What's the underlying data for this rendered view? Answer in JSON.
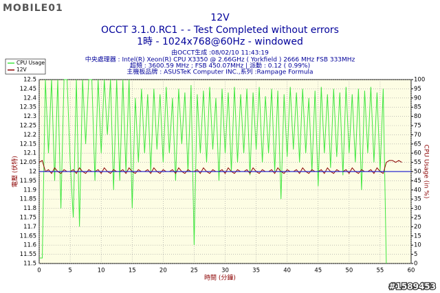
{
  "watermark": "MOBILE01",
  "id_tag": "#1589453",
  "chart_data": {
    "type": "line",
    "title": "12V",
    "subtitle_lines": [
      "OCCT 3.1.0.RC1 -  - Test Completed without errors",
      "1時 - 1024x768@60Hz - windowed"
    ],
    "info_lines": [
      "由OCCT生成 :08/02/10 11:43:19",
      "中央處理器 : Intel(R) Xeon(R) CPU X3350 @ 2.66GHz ( Yorkfield ) 2666 MHz FSB 333MHz",
      "超頻 : 3600.59 MHz ; FSB 450.07MHz | 派動 : 0.12 ( 0.99%)",
      "主機板品牌 : ASUSTeK Computer INC.,系列 :Rampage Formula"
    ],
    "x_label": "時間 (分鐘)",
    "y_label": "電壓 (伏特)",
    "y2_label": "CPU Usage (in %)",
    "xlim": [
      0,
      60
    ],
    "xticks": [
      0,
      5,
      10,
      15,
      20,
      25,
      30,
      35,
      40,
      45,
      50,
      55,
      60
    ],
    "ylim": [
      11.5,
      12.5
    ],
    "yticks": [
      11.5,
      11.55,
      11.6,
      11.65,
      11.7,
      11.75,
      11.8,
      11.85,
      11.9,
      11.95,
      12,
      12.05,
      12.1,
      12.15,
      12.2,
      12.25,
      12.3,
      12.35,
      12.4,
      12.45,
      12.5
    ],
    "y2lim": [
      0,
      100
    ],
    "y2ticks": [
      0,
      5,
      10,
      15,
      20,
      25,
      30,
      35,
      40,
      45,
      50,
      55,
      60,
      65,
      70,
      75,
      80,
      85,
      90,
      95,
      100
    ],
    "grid": true,
    "legend": "top-left",
    "reference_value": 12,
    "reference_color": "#2a2ad0",
    "x": [
      0,
      0.5,
      1,
      1.5,
      2,
      2.5,
      3,
      3.5,
      4,
      4.5,
      5,
      5.5,
      6,
      6.5,
      7,
      7.5,
      8,
      8.5,
      9,
      9.5,
      10,
      10.5,
      11,
      11.5,
      12,
      12.5,
      13,
      13.5,
      14,
      14.5,
      15,
      15.5,
      16,
      16.5,
      17,
      17.5,
      18,
      18.5,
      19,
      19.5,
      20,
      20.5,
      21,
      21.5,
      22,
      22.5,
      23,
      23.5,
      24,
      24.5,
      25,
      25.5,
      26,
      26.5,
      27,
      27.5,
      28,
      28.5,
      29,
      29.5,
      30,
      30.5,
      31,
      31.5,
      32,
      32.5,
      33,
      33.5,
      34,
      34.5,
      35,
      35.5,
      36,
      36.5,
      37,
      37.5,
      38,
      38.5,
      39,
      39.5,
      40,
      40.5,
      41,
      41.5,
      42,
      42.5,
      43,
      43.5,
      44,
      44.5,
      45,
      45.5,
      46,
      46.5,
      47,
      47.5,
      48,
      48.5,
      49,
      49.5,
      50,
      50.5,
      51,
      51.5,
      52,
      52.5,
      53,
      53.5,
      54,
      54.5,
      55,
      55.5,
      56,
      56.5,
      57,
      57.5,
      58,
      58.5,
      59,
      59.5,
      60
    ],
    "series": [
      {
        "name": "CPU Usage",
        "color": "#3ee63e",
        "axis": "y2",
        "values": [
          3,
          3,
          100,
          60,
          100,
          45,
          100,
          30,
          100,
          100,
          55,
          25,
          100,
          20,
          100,
          65,
          100,
          100,
          45,
          100,
          60,
          100,
          70,
          100,
          40,
          100,
          45,
          100,
          50,
          100,
          30,
          90,
          55,
          95,
          60,
          92,
          50,
          95,
          62,
          92,
          55,
          96,
          60,
          90,
          45,
          95,
          65,
          93,
          50,
          97,
          10,
          92,
          60,
          94,
          55,
          96,
          62,
          90,
          45,
          95,
          60,
          93,
          50,
          96,
          55,
          92,
          60,
          95,
          48,
          93,
          62,
          96,
          55,
          91,
          60,
          95,
          50,
          94,
          35,
          92,
          58,
          96,
          62,
          93,
          55,
          95,
          60,
          90,
          50,
          94,
          42,
          96,
          60,
          92,
          52,
          95,
          58,
          93,
          48,
          96,
          60,
          92,
          55,
          95,
          40,
          94,
          60,
          96,
          55,
          93,
          50,
          95,
          0,
          null,
          null,
          null,
          null,
          null,
          null,
          null,
          null
        ]
      },
      {
        "name": "12V",
        "color": "#8b0000",
        "values": [
          12.05,
          12.06,
          12,
          12.01,
          11.99,
          12.02,
          12,
          11.99,
          12.01,
          12,
          12,
          12.01,
          11.99,
          12.02,
          12,
          11.99,
          12.01,
          12,
          12,
          12.01,
          11.99,
          12.02,
          12,
          11.99,
          12.01,
          12,
          12,
          12.01,
          11.99,
          12.02,
          12,
          11.99,
          12.01,
          12,
          12,
          12.01,
          11.99,
          12.02,
          12,
          11.99,
          12.01,
          12,
          12,
          12.01,
          11.99,
          12.02,
          12,
          11.99,
          12.01,
          12,
          12,
          12.01,
          11.99,
          12.02,
          12,
          11.99,
          12.01,
          12,
          12,
          12.01,
          11.99,
          12.02,
          12,
          11.99,
          12.01,
          12,
          12,
          12.01,
          11.99,
          12.02,
          12,
          11.99,
          12.01,
          12,
          12,
          12.01,
          11.99,
          12.02,
          12,
          11.99,
          12.01,
          12,
          12,
          12.01,
          11.99,
          12.02,
          12,
          11.99,
          12.01,
          12,
          12,
          12.01,
          11.99,
          12.02,
          12,
          11.99,
          12.01,
          12,
          12,
          12.01,
          11.99,
          12.02,
          12,
          11.99,
          12.01,
          12,
          12,
          12.01,
          11.99,
          12.02,
          12,
          11.99,
          12.05,
          12.06,
          12.06,
          12.05,
          12.06,
          12.05,
          null,
          null,
          null
        ]
      }
    ]
  }
}
